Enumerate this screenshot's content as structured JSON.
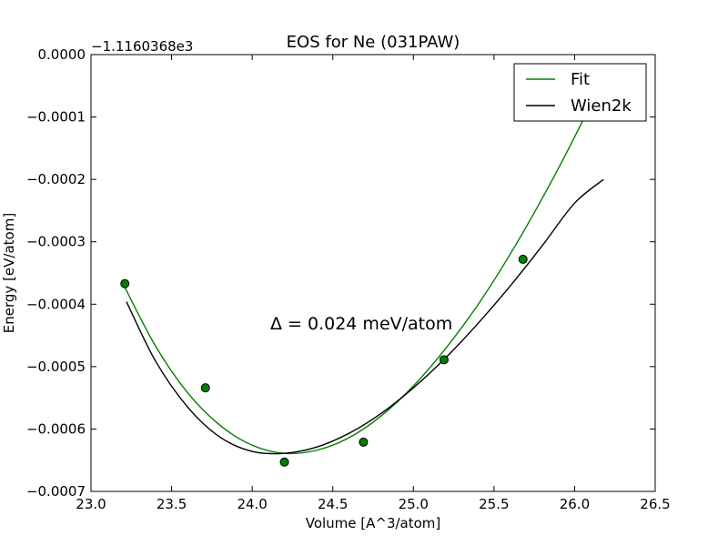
{
  "chart_data": {
    "type": "scatter",
    "title": "EOS for Ne (031PAW)",
    "xlabel": "Volume [A^3/atom]",
    "ylabel": "Energy [eV/atom]",
    "offset_label": "−1.1160368e3",
    "annotation": "Δ = 0.024 meV/atom",
    "xlim": [
      23.0,
      26.5
    ],
    "ylim": [
      -0.0007,
      0.0
    ],
    "x_ticks": [
      23.0,
      23.5,
      24.0,
      24.5,
      25.0,
      25.5,
      26.0,
      26.5
    ],
    "x_tick_labels": [
      "23.0",
      "23.5",
      "24.0",
      "24.5",
      "25.0",
      "25.5",
      "26.0",
      "26.5"
    ],
    "y_ticks": [
      0.0,
      -0.0001,
      -0.0002,
      -0.0003,
      -0.0004,
      -0.0005,
      -0.0006,
      -0.0007
    ],
    "y_tick_labels": [
      "0.0000",
      "−0.0001",
      "−0.0002",
      "−0.0003",
      "−0.0004",
      "−0.0005",
      "−0.0006",
      "−0.0007"
    ],
    "grid": false,
    "legend_position": "top-right",
    "series": [
      {
        "name": "Fit",
        "kind": "line",
        "color": "#008000",
        "x": [
          23.2,
          23.4,
          23.6,
          23.8,
          24.0,
          24.2,
          24.4,
          24.6,
          24.8,
          25.0,
          25.2,
          25.4,
          25.6,
          25.8,
          26.0,
          26.2
        ],
        "y": [
          -0.000368,
          -0.000467,
          -0.000542,
          -0.000594,
          -0.000626,
          -0.000639,
          -0.000634,
          -0.000614,
          -0.000579,
          -0.000531,
          -0.000471,
          -0.000401,
          -0.00032,
          -0.00023,
          -0.000132,
          -2.6e-05
        ]
      },
      {
        "name": "Wien2k",
        "kind": "line",
        "color": "#000000",
        "x": [
          23.22,
          23.4,
          23.6,
          23.8,
          24.0,
          24.2,
          24.4,
          24.6,
          24.8,
          25.0,
          25.2,
          25.4,
          25.6,
          25.8,
          26.0,
          26.18
        ],
        "y": [
          -0.000396,
          -0.000491,
          -0.000565,
          -0.000613,
          -0.000636,
          -0.000639,
          -0.000629,
          -0.000607,
          -0.000575,
          -0.000534,
          -0.000486,
          -0.000431,
          -0.000371,
          -0.000306,
          -0.000238,
          -0.0002
        ]
      },
      {
        "name": "",
        "kind": "points",
        "color": "#008000",
        "x": [
          23.21,
          23.71,
          24.2,
          24.69,
          25.19,
          25.68
        ],
        "y": [
          -0.000367,
          -0.000534,
          -0.000653,
          -0.000621,
          -0.000489,
          -0.000328
        ]
      }
    ]
  }
}
